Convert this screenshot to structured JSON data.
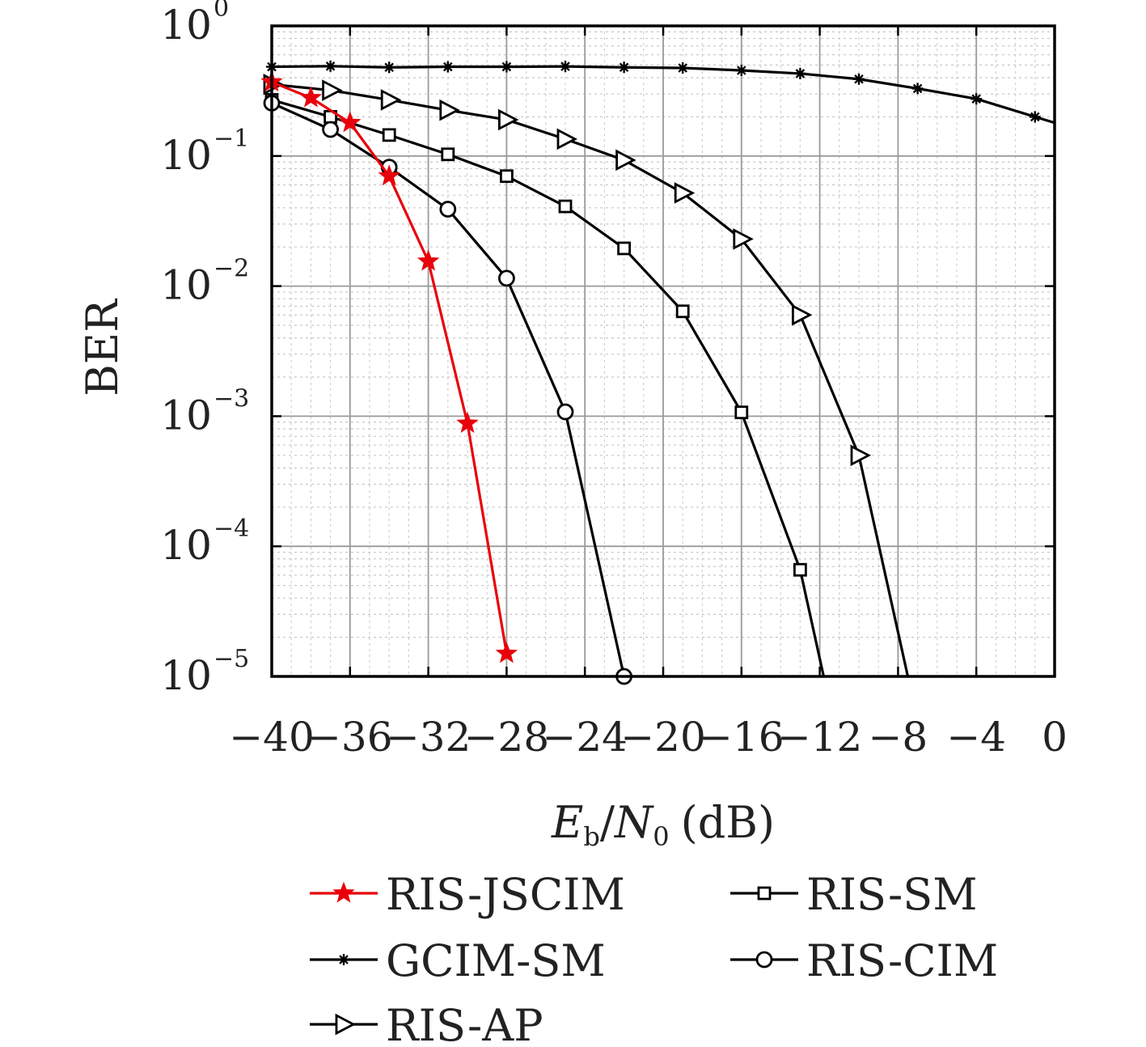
{
  "chart_data": {
    "type": "line",
    "xlabel": "E_b/N_0 (dB)",
    "xlabel_parts": {
      "E": "E",
      "b": "b",
      "slash": "/",
      "N": "N",
      "zero": "0",
      "unit": "(dB)"
    },
    "ylabel": "BER",
    "xlim": [
      -40,
      0
    ],
    "ylim": [
      1e-05,
      1
    ],
    "yscale": "log",
    "grid": true,
    "minor_grid": true,
    "legend_position": "bottom",
    "xticks": [
      -40,
      -36,
      -32,
      -28,
      -24,
      -20,
      -16,
      -12,
      -8,
      -4,
      0
    ],
    "xtick_labels": [
      "−40",
      "−36",
      "−32",
      "−28",
      "−24",
      "−20",
      "−16",
      "−12",
      "−8",
      "−4",
      "0"
    ],
    "yticks": [
      {
        "value": 1,
        "base": "10",
        "exp": "0"
      },
      {
        "value": 0.1,
        "base": "10",
        "exp": "−1"
      },
      {
        "value": 0.01,
        "base": "10",
        "exp": "−2"
      },
      {
        "value": 0.001,
        "base": "10",
        "exp": "−3"
      },
      {
        "value": 0.0001,
        "base": "10",
        "exp": "−4"
      },
      {
        "value": 1e-05,
        "base": "10",
        "exp": "−5"
      }
    ],
    "series": [
      {
        "name": "RIS-JSCIM",
        "color": "#e8000b",
        "marker": "star",
        "x": [
          -40,
          -38,
          -36,
          -34,
          -32,
          -30,
          -28
        ],
        "y": [
          0.37,
          0.28,
          0.18,
          0.07,
          0.0155,
          0.00088,
          1.5e-05
        ]
      },
      {
        "name": "GCIM-SM",
        "color": "#000000",
        "marker": "asterisk",
        "x": [
          -40,
          -37,
          -34,
          -31,
          -28,
          -25,
          -22,
          -19,
          -16,
          -13,
          -10,
          -7,
          -4,
          -1,
          0
        ],
        "y": [
          0.485,
          0.49,
          0.48,
          0.485,
          0.485,
          0.488,
          0.48,
          0.475,
          0.455,
          0.43,
          0.39,
          0.33,
          0.275,
          0.2,
          0.18
        ]
      },
      {
        "name": "RIS-AP",
        "color": "#000000",
        "marker": "triangle-right",
        "x": [
          -40,
          -37,
          -34,
          -31,
          -28,
          -25,
          -22,
          -19,
          -16,
          -13,
          -10,
          -7.5
        ],
        "y": [
          0.355,
          0.32,
          0.27,
          0.225,
          0.19,
          0.135,
          0.093,
          0.052,
          0.023,
          0.006,
          0.0005,
          1e-05
        ]
      },
      {
        "name": "RIS-SM",
        "color": "#000000",
        "marker": "square",
        "x": [
          -40,
          -37,
          -34,
          -31,
          -28,
          -25,
          -22,
          -19,
          -16,
          -13,
          -11.8
        ],
        "y": [
          0.27,
          0.2,
          0.145,
          0.103,
          0.07,
          0.041,
          0.0195,
          0.0064,
          0.00107,
          6.6e-05,
          1e-05
        ]
      },
      {
        "name": "RIS-CIM",
        "color": "#000000",
        "marker": "circle",
        "x": [
          -40,
          -37,
          -34,
          -31,
          -28,
          -25,
          -22
        ],
        "y": [
          0.255,
          0.16,
          0.082,
          0.039,
          0.0115,
          0.00108,
          1e-05
        ]
      }
    ]
  }
}
